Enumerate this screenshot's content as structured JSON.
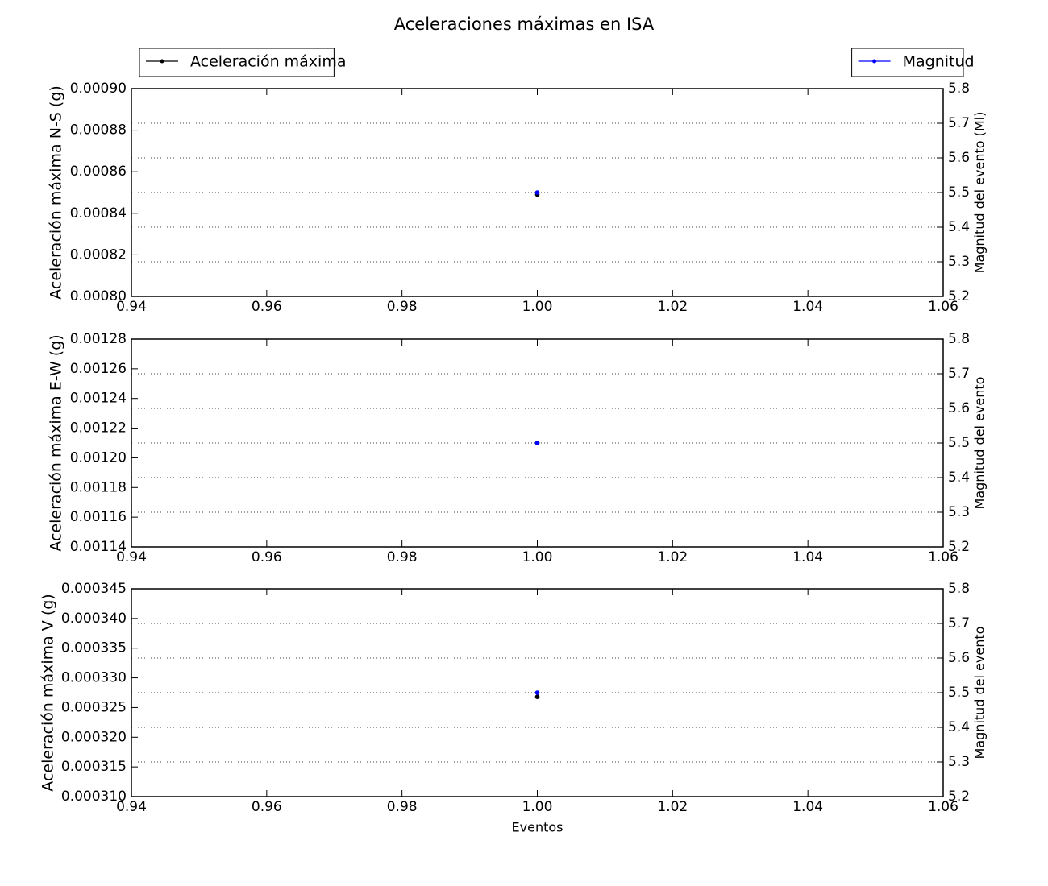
{
  "chart_data": [
    {
      "type": "line",
      "title": "Aceleraciones máximas en ISA",
      "x": [
        1
      ],
      "xlim": [
        0.94,
        1.06
      ],
      "xticks": [
        0.94,
        0.96,
        0.98,
        {
          "value": 1,
          "label": "1.00"
        },
        1.02,
        1.04,
        1.06
      ],
      "ylabel": "Aceleración máxima N-S (g)",
      "y2label": "Magnitud del evento (Ml)",
      "ylim": [
        0.0008,
        0.0009
      ],
      "yticks": [
        {
          "value": 0.0008,
          "label": "0.00080"
        },
        0.00082,
        0.00084,
        0.00086,
        0.00088,
        {
          "value": 0.0009,
          "label": "0.00090"
        }
      ],
      "y2lim": [
        5.2,
        5.8
      ],
      "y2ticks": [
        5.2,
        5.3,
        5.4,
        5.5,
        5.6,
        5.7,
        5.8
      ],
      "grid": "y2",
      "series": [
        {
          "name": "Aceleración máxima",
          "color": "#000000",
          "values": [
            0.000849
          ],
          "legend": "upper left"
        },
        {
          "name": "Magnitud",
          "color": "#0000ff",
          "values": [
            5.5
          ],
          "axis": "y2",
          "legend": "upper right"
        }
      ]
    },
    {
      "type": "line",
      "x": [
        1
      ],
      "xlim": [
        0.94,
        1.06
      ],
      "xticks": [
        0.94,
        0.96,
        0.98,
        {
          "value": 1,
          "label": "1.00"
        },
        1.02,
        1.04,
        1.06
      ],
      "ylabel": "Aceleración máxima E-W (g)",
      "y2label": "Magnitud del evento",
      "ylim": [
        0.00114,
        0.00128
      ],
      "yticks": [
        0.00114,
        0.00116,
        0.00118,
        {
          "value": 0.0012,
          "label": "0.00120"
        },
        0.00122,
        0.00124,
        0.00126,
        0.00128
      ],
      "y2lim": [
        5.2,
        5.8
      ],
      "y2ticks": [
        5.2,
        5.3,
        5.4,
        5.5,
        5.6,
        5.7,
        5.8
      ],
      "grid": "y2",
      "series": [
        {
          "color": "#000000",
          "values": [
            0.00121
          ]
        },
        {
          "color": "#0000ff",
          "values": [
            5.5
          ],
          "axis": "y2"
        }
      ]
    },
    {
      "type": "line",
      "x": [
        1
      ],
      "xlim": [
        0.94,
        1.06
      ],
      "xticks": [
        0.94,
        0.96,
        0.98,
        {
          "value": 1,
          "label": "1.00"
        },
        1.02,
        1.04,
        1.06
      ],
      "xlabel": "Eventos",
      "ylabel": "Aceleración máxima V (g)",
      "y2label": "Magnitud del evento",
      "ylim": [
        0.00031,
        0.000345
      ],
      "yticks": [
        {
          "value": 0.00031,
          "label": "0.000310"
        },
        0.000315,
        {
          "value": 0.00032,
          "label": "0.000320"
        },
        0.000325,
        {
          "value": 0.00033,
          "label": "0.000330"
        },
        0.000335,
        {
          "value": 0.00034,
          "label": "0.000340"
        },
        0.000345
      ],
      "y2lim": [
        5.2,
        5.8
      ],
      "y2ticks": [
        5.2,
        5.3,
        5.4,
        5.5,
        5.6,
        5.7,
        5.8
      ],
      "grid": "y2",
      "series": [
        {
          "color": "#000000",
          "values": [
            0.0003268
          ]
        },
        {
          "color": "#0000ff",
          "values": [
            5.5
          ],
          "axis": "y2"
        }
      ]
    }
  ]
}
